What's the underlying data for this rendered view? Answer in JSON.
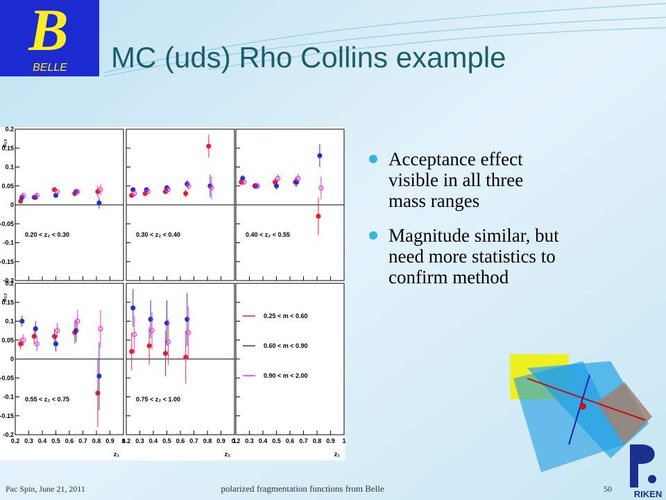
{
  "slide": {
    "logo_letter": "B",
    "logo_text": "BELLE",
    "title": "MC (uds) Rho Collins example",
    "bullets": [
      "Acceptance effect visible in all three mass ranges",
      "Magnitude similar, but need more statistics to confirm method"
    ],
    "footer_left": "Pac Spin, June 21, 2011",
    "footer_center": "polarized fragmentation functions from Belle",
    "page_number": "50",
    "riken": "RIKEN"
  },
  "chart_data": {
    "type": "scatter",
    "xlabel": "z₁",
    "ylabel": "a₁₂",
    "xlim": [
      0.2,
      1
    ],
    "ylim": [
      -0.2,
      0.2
    ],
    "xticks": [
      0.2,
      0.3,
      0.4,
      0.5,
      0.6,
      0.7,
      0.8,
      0.9,
      1
    ],
    "yticks": [
      -0.2,
      -0.15,
      -0.1,
      -0.05,
      0,
      0.05,
      0.1,
      0.15,
      0.2
    ],
    "series": [
      {
        "name": "0.25 < m < 0.60",
        "color": "#e8202a"
      },
      {
        "name": "0.60 < m < 0.90",
        "color": "#2430c8"
      },
      {
        "name": "0.90 < m < 2.00",
        "color": "#ee2ee0"
      }
    ],
    "panels": [
      {
        "label": "0.20 < z₂ < 0.30",
        "x": [
          0.25,
          0.35,
          0.5,
          0.65,
          0.82
        ],
        "series": [
          {
            "values": [
              0.01,
              0.02,
              0.04,
              0.03,
              0.035
            ],
            "errors": [
              0.005,
              0.005,
              0.006,
              0.007,
              0.015
            ]
          },
          {
            "values": [
              0.02,
              0.02,
              0.025,
              0.035,
              0.005
            ],
            "errors": [
              0.005,
              0.005,
              0.006,
              0.007,
              0.015
            ]
          },
          {
            "values": [
              0.025,
              0.025,
              0.035,
              0.035,
              0.04
            ],
            "errors": [
              0.005,
              0.005,
              0.006,
              0.007,
              0.015
            ]
          }
        ]
      },
      {
        "label": "0.30 < z₂ < 0.40",
        "x": [
          0.25,
          0.35,
          0.5,
          0.65,
          0.82
        ],
        "series": [
          {
            "values": [
              0.025,
              0.03,
              0.035,
              0.03,
              0.155
            ],
            "errors": [
              0.006,
              0.006,
              0.007,
              0.01,
              0.03
            ]
          },
          {
            "values": [
              0.04,
              0.04,
              0.045,
              0.055,
              0.05
            ],
            "errors": [
              0.006,
              0.006,
              0.007,
              0.01,
              0.03
            ]
          },
          {
            "values": [
              0.03,
              0.035,
              0.04,
              0.05,
              0.045
            ],
            "errors": [
              0.006,
              0.006,
              0.007,
              0.01,
              0.03
            ]
          }
        ]
      },
      {
        "label": "0.40 < z₂ < 0.55",
        "x": [
          0.25,
          0.35,
          0.5,
          0.65,
          0.82
        ],
        "series": [
          {
            "values": [
              0.06,
              0.05,
              0.06,
              0.06,
              -0.03
            ],
            "errors": [
              0.008,
              0.008,
              0.01,
              0.012,
              0.05
            ]
          },
          {
            "values": [
              0.07,
              0.05,
              0.05,
              0.06,
              0.13
            ],
            "errors": [
              0.008,
              0.008,
              0.01,
              0.012,
              0.03
            ]
          },
          {
            "values": [
              0.06,
              0.05,
              0.07,
              0.07,
              0.045
            ],
            "errors": [
              0.008,
              0.008,
              0.01,
              0.012,
              0.03
            ]
          }
        ]
      },
      {
        "label": "0.55 < z₂ < 0.75",
        "x": [
          0.25,
          0.35,
          0.5,
          0.65,
          0.82
        ],
        "series": [
          {
            "values": [
              0.04,
              0.06,
              0.06,
              0.07,
              -0.09
            ],
            "errors": [
              0.015,
              0.02,
              0.02,
              0.03,
              0.09
            ]
          },
          {
            "values": [
              0.1,
              0.08,
              0.04,
              0.075,
              -0.045
            ],
            "errors": [
              0.015,
              0.02,
              0.02,
              0.03,
              0.09
            ]
          },
          {
            "values": [
              0.05,
              0.04,
              0.075,
              0.1,
              0.08
            ],
            "errors": [
              0.015,
              0.02,
              0.02,
              0.03,
              0.05
            ]
          }
        ]
      },
      {
        "label": "0.75 < z₂ < 1.00",
        "x": [
          0.25,
          0.38,
          0.5,
          0.65
        ],
        "series": [
          {
            "values": [
              0.02,
              0.035,
              0.015,
              0.005
            ],
            "errors": [
              0.05,
              0.05,
              0.06,
              0.07
            ]
          },
          {
            "values": [
              0.135,
              0.105,
              0.095,
              0.105
            ],
            "errors": [
              0.05,
              0.05,
              0.06,
              0.07
            ]
          },
          {
            "values": [
              0.065,
              0.075,
              0.045,
              0.07
            ],
            "errors": [
              0.05,
              0.05,
              0.06,
              0.07
            ]
          }
        ]
      }
    ]
  }
}
